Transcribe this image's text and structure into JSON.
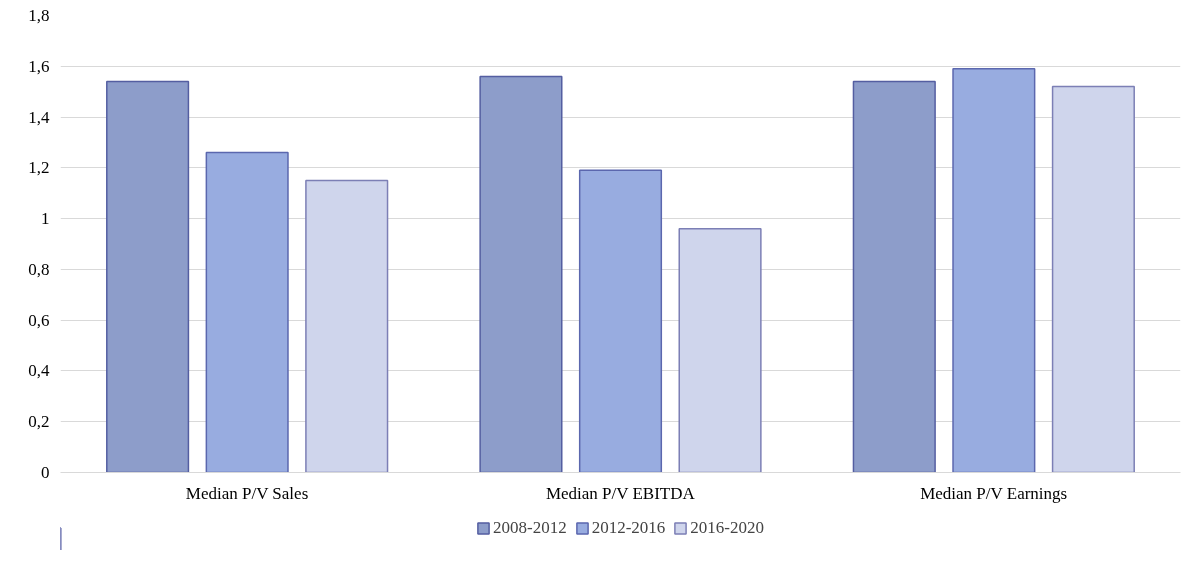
{
  "chart_data": {
    "type": "bar",
    "categories": [
      "Median P/V Sales",
      "Median P/V EBITDA",
      "Median P/V Earnings"
    ],
    "series": [
      {
        "name": "2008-2012",
        "color": "#8d9dca",
        "values": [
          1.54,
          1.56,
          1.54
        ]
      },
      {
        "name": "2012-2016",
        "color": "#98ace0",
        "values": [
          1.26,
          1.19,
          1.59
        ]
      },
      {
        "name": "2016-2020",
        "color": "#cfd5ec",
        "values": [
          1.15,
          0.96,
          1.52
        ]
      }
    ],
    "ylim": [
      0,
      1.8
    ],
    "yticks": [
      0,
      {
        "value": 0.2,
        "label": "0,2"
      },
      {
        "value": 0.4,
        "label": "0,4"
      },
      {
        "value": 0.6,
        "label": "0,6"
      },
      {
        "value": 0.8,
        "label": "0,8"
      },
      1,
      {
        "value": 1.2,
        "label": "1,2"
      },
      {
        "value": 1.4,
        "label": "1,4"
      },
      {
        "value": 1.6,
        "label": "1,6"
      },
      {
        "value": 1.8,
        "label": "1,8"
      }
    ],
    "grid": "y",
    "legend": "bottom"
  }
}
